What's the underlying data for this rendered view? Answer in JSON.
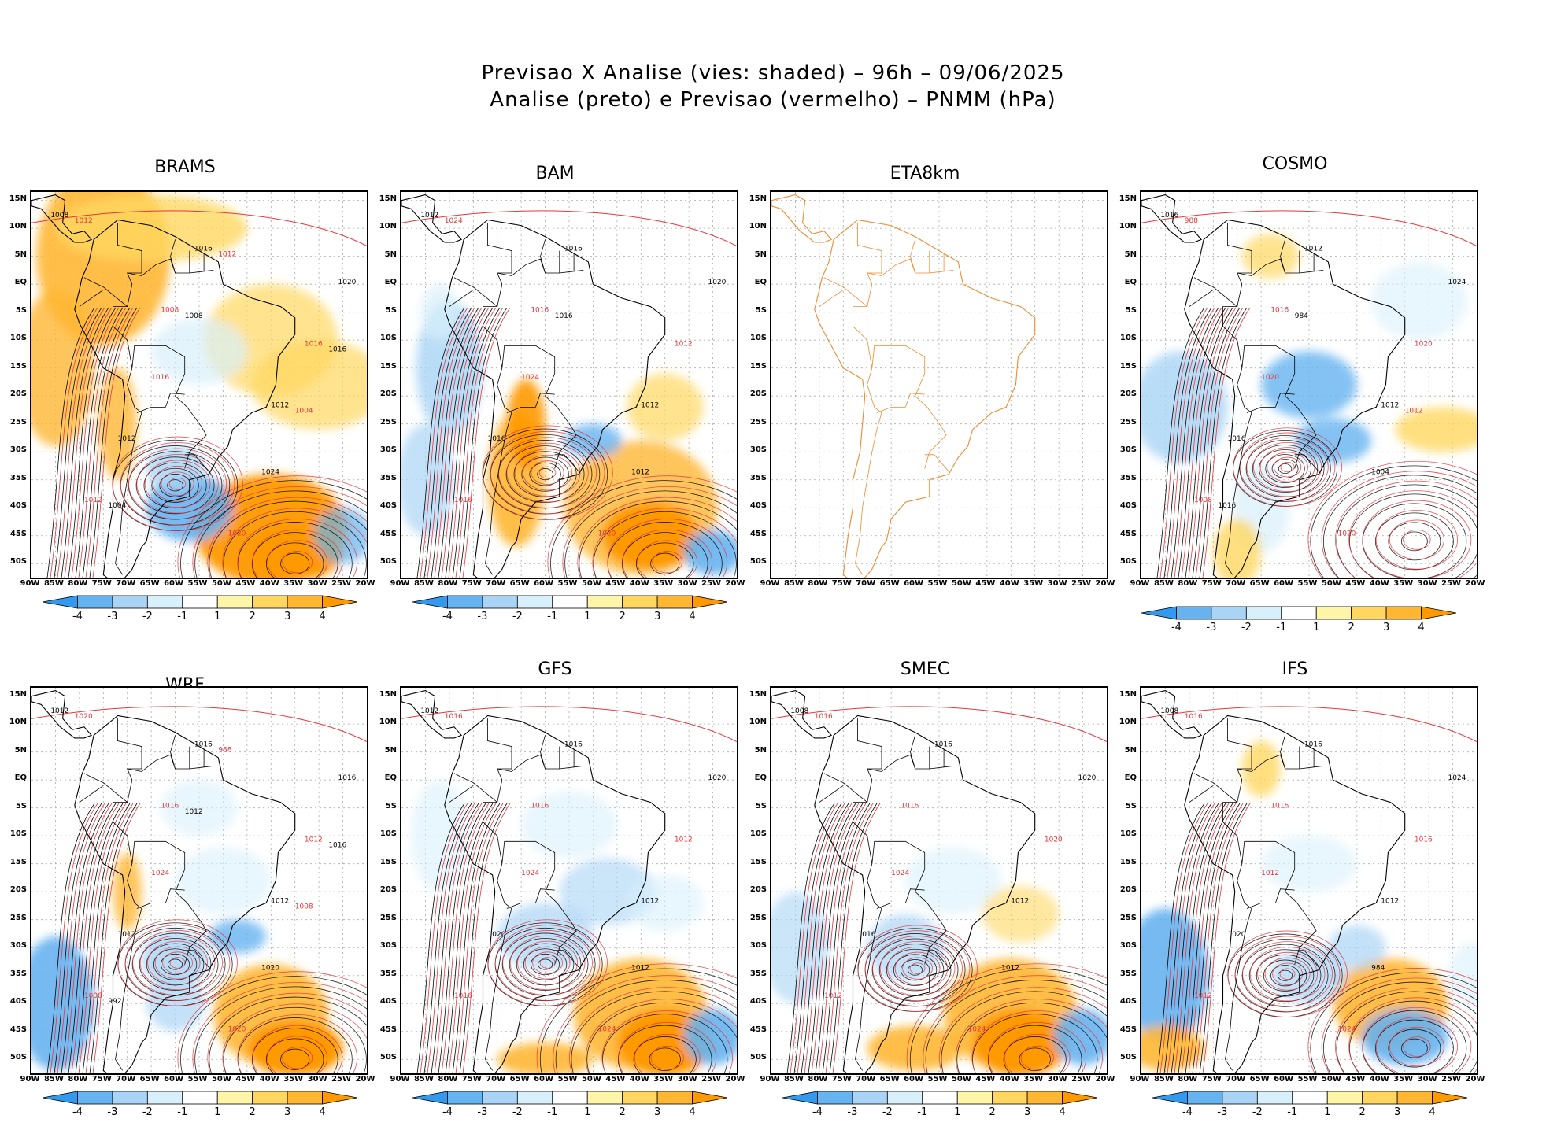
{
  "header": {
    "line1": "Previsao X Analise (vies: shaded) – 96h – 09/06/2025",
    "line2": "Analise (preto) e Previsao (vermelho) – PNMM (hPa)"
  },
  "axes": {
    "lat_labels": [
      "15N",
      "10N",
      "5N",
      "EQ",
      "5S",
      "10S",
      "15S",
      "20S",
      "25S",
      "30S",
      "35S",
      "40S",
      "45S",
      "50S"
    ],
    "lon_labels": [
      "90W",
      "85W",
      "80W",
      "75W",
      "70W",
      "65W",
      "60W",
      "55W",
      "50W",
      "45W",
      "40W",
      "35W",
      "30W",
      "25W",
      "20W"
    ]
  },
  "colorbar": {
    "ticks": [
      "-4",
      "-3",
      "-2",
      "-1",
      "1",
      "2",
      "3",
      "4"
    ],
    "colors": [
      "#3399ee",
      "#66b3f0",
      "#a9d4f5",
      "#d8f0fb",
      "#ffffff",
      "#fff5a8",
      "#ffd760",
      "#ffb733",
      "#ff9900"
    ]
  },
  "colors": {
    "analysis": "#000000",
    "forecast": "#e8363b",
    "coast_eta": "#f08a30"
  },
  "panels": [
    {
      "id": "brams",
      "title": "BRAMS",
      "has_data": true,
      "contours": [
        "1008",
        "1008",
        "1012",
        "1012",
        "1016",
        "1016",
        "1012",
        "1020",
        "1020",
        "1016",
        "1024",
        "1012",
        "1008",
        "1004",
        "1004",
        "1012",
        "1016"
      ]
    },
    {
      "id": "bam",
      "title": "BAM",
      "has_data": true,
      "contours": [
        "1012",
        "1016",
        "1012",
        "1016",
        "1016",
        "1012",
        "1016",
        "1020",
        "1020",
        "1024",
        "1012",
        "1024",
        "1016"
      ]
    },
    {
      "id": "eta8km",
      "title": "ETA8km",
      "has_data": false,
      "contours": []
    },
    {
      "id": "cosmo",
      "title": "COSMO",
      "has_data": true,
      "contours": [
        "1016",
        "1016",
        "1012",
        "1008",
        "1012",
        "1020",
        "1016",
        "1020",
        "1024",
        "1020",
        "1004",
        "988",
        "984",
        "1012",
        "1016"
      ]
    },
    {
      "id": "wrf",
      "title": "WRF",
      "has_data": true,
      "contours": [
        "1012",
        "1016",
        "1012",
        "1008",
        "1016",
        "1012",
        "1012",
        "1020",
        "1016",
        "1024",
        "1020",
        "1020",
        "1012",
        "1008",
        "992",
        "988",
        "1016"
      ]
    },
    {
      "id": "gfs",
      "title": "GFS",
      "has_data": true,
      "contours": [
        "1012",
        "1016",
        "1012",
        "1016",
        "1016",
        "1012",
        "1020",
        "1024",
        "1020",
        "1024",
        "1012",
        "1016"
      ]
    },
    {
      "id": "smec",
      "title": "SMEC",
      "has_data": true,
      "contours": [
        "1008",
        "1016",
        "1012",
        "1012",
        "1016",
        "1020",
        "1016",
        "1024",
        "1020",
        "1024",
        "1012",
        "1016"
      ]
    },
    {
      "id": "ifs",
      "title": "IFS",
      "has_data": true,
      "contours": [
        "1008",
        "1016",
        "1012",
        "1012",
        "1016",
        "1016",
        "1020",
        "1024",
        "1024",
        "1012",
        "984",
        "1016"
      ]
    }
  ]
}
